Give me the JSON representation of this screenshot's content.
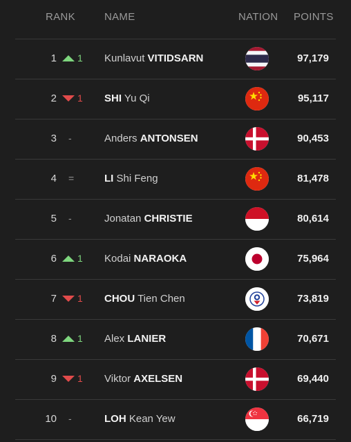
{
  "header": {
    "rank": "RANK",
    "name": "NAME",
    "nation": "NATION",
    "points": "POINTS"
  },
  "rows": [
    {
      "rank": "1",
      "move_dir": "up",
      "move": "1",
      "first": "Kunlavut",
      "last": "VITIDSARN",
      "last_first": false,
      "flag": "thailand-flag",
      "points": "97,179"
    },
    {
      "rank": "2",
      "move_dir": "down",
      "move": "1",
      "first": "Yu Qi",
      "last": "SHI",
      "last_first": true,
      "flag": "china-flag",
      "points": "95,117"
    },
    {
      "rank": "3",
      "move_dir": "same",
      "move": "-",
      "first": "Anders",
      "last": "ANTONSEN",
      "last_first": false,
      "flag": "denmark-flag",
      "points": "90,453"
    },
    {
      "rank": "4",
      "move_dir": "same",
      "move": "=",
      "first": "Shi Feng",
      "last": "LI",
      "last_first": true,
      "flag": "china-flag",
      "points": "81,478"
    },
    {
      "rank": "5",
      "move_dir": "same",
      "move": "-",
      "first": "Jonatan",
      "last": "CHRISTIE",
      "last_first": false,
      "flag": "indonesia-flag",
      "points": "80,614"
    },
    {
      "rank": "6",
      "move_dir": "up",
      "move": "1",
      "first": "Kodai",
      "last": "NARAOKA",
      "last_first": false,
      "flag": "japan-flag",
      "points": "75,964"
    },
    {
      "rank": "7",
      "move_dir": "down",
      "move": "1",
      "first": "Tien Chen",
      "last": "CHOU",
      "last_first": true,
      "flag": "chinese-taipei-flag",
      "points": "73,819"
    },
    {
      "rank": "8",
      "move_dir": "up",
      "move": "1",
      "first": "Alex",
      "last": "LANIER",
      "last_first": false,
      "flag": "france-flag",
      "points": "70,671"
    },
    {
      "rank": "9",
      "move_dir": "down",
      "move": "1",
      "first": "Viktor",
      "last": "AXELSEN",
      "last_first": false,
      "flag": "denmark-flag",
      "points": "69,440"
    },
    {
      "rank": "10",
      "move_dir": "same",
      "move": "-",
      "first": "Kean Yew",
      "last": "LOH",
      "last_first": true,
      "flag": "singapore-flag",
      "points": "66,719"
    }
  ]
}
